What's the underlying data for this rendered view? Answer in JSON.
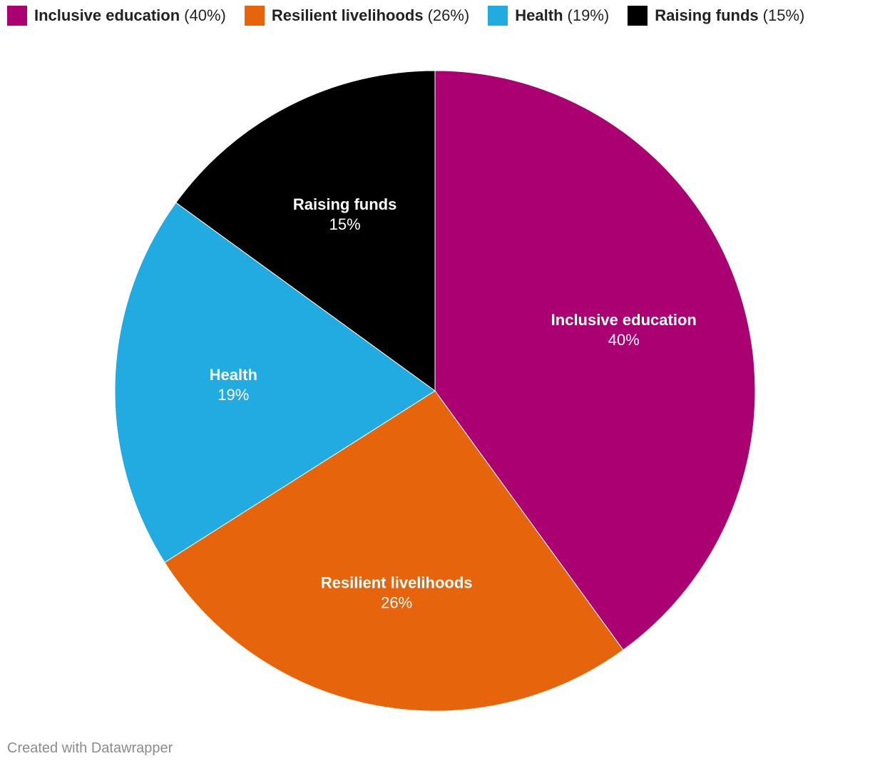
{
  "chart_data": {
    "type": "pie",
    "slices": [
      {
        "label": "Inclusive education",
        "value": 40,
        "pct_text": "40%",
        "legend_pct": "(40%)",
        "color": "#ab0071"
      },
      {
        "label": "Resilient livelihoods",
        "value": 26,
        "pct_text": "26%",
        "legend_pct": "(26%)",
        "color": "#e5640c"
      },
      {
        "label": "Health",
        "value": 19,
        "pct_text": "19%",
        "legend_pct": "(19%)",
        "color": "#21abe0"
      },
      {
        "label": "Raising funds",
        "value": 15,
        "pct_text": "15%",
        "legend_pct": "(15%)",
        "color": "#000000"
      }
    ],
    "legend_position": "top-left"
  },
  "footer": {
    "credit": "Created with Datawrapper"
  }
}
